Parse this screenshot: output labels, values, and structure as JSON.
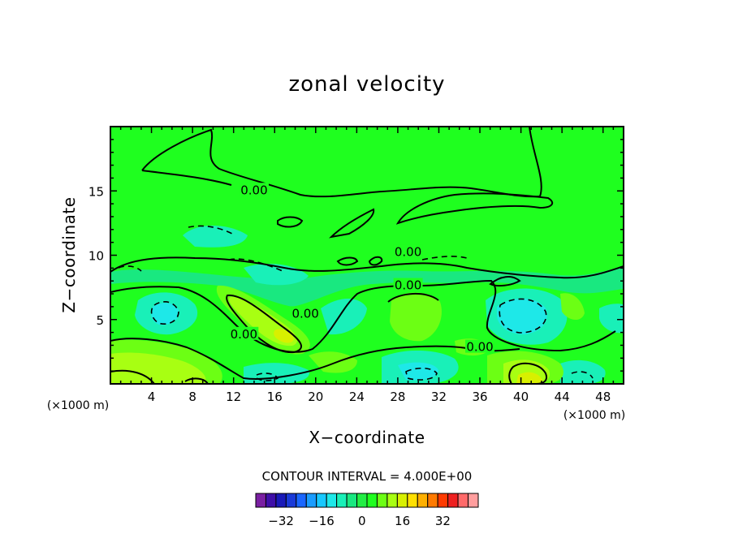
{
  "chart_data": {
    "type": "contour",
    "title": "zonal velocity",
    "xlabel": "X−coordinate",
    "ylabel": "Z−coordinate",
    "x_unit": "(×1000 m)",
    "y_unit": "(×1000 m)",
    "xlim": [
      0,
      50
    ],
    "ylim": [
      0,
      20
    ],
    "x_ticks": [
      4,
      8,
      12,
      16,
      20,
      24,
      28,
      32,
      36,
      40,
      44,
      48
    ],
    "y_ticks": [
      5,
      10,
      15
    ],
    "x_tick_labels": [
      "4",
      "8",
      "12",
      "16",
      "20",
      "24",
      "28",
      "32",
      "36",
      "40",
      "44",
      "48"
    ],
    "y_tick_labels": [
      "5",
      "10",
      "15"
    ],
    "contour_interval_text": "CONTOUR INTERVAL = 4.000E+00",
    "contour_interval": 4,
    "contour_labels": [
      {
        "text": "0.00",
        "x": 14,
        "z": 15
      },
      {
        "text": "0.00",
        "x": 29,
        "z": 10.2
      },
      {
        "text": "0.00",
        "x": 29,
        "z": 7.6
      },
      {
        "text": "0.00",
        "x": 19,
        "z": 5.4
      },
      {
        "text": "0.00",
        "x": 13,
        "z": 3.8
      },
      {
        "text": "0.00",
        "x": 36,
        "z": 2.8
      }
    ],
    "colorbar": {
      "ticks": [
        -32,
        -16,
        0,
        16,
        32
      ],
      "tick_labels": [
        "−32",
        "−16",
        "0",
        "16",
        "32"
      ],
      "levels": [
        -36,
        -32,
        -28,
        -24,
        -20,
        -16,
        -12,
        -8,
        -4,
        0,
        4,
        8,
        12,
        16,
        20,
        24,
        28,
        32,
        36
      ],
      "colors": [
        "#7a1fa2",
        "#3f0fa8",
        "#1a1ab8",
        "#1a3ad8",
        "#1a66ff",
        "#1a9cff",
        "#18c8ff",
        "#1ee8e8",
        "#19f0b8",
        "#19e880",
        "#22ee44",
        "#1fff1f",
        "#6cff14",
        "#a8ff12",
        "#d8f000",
        "#ffe000",
        "#ffb000",
        "#ff7a00",
        "#ff3a00",
        "#ee2020",
        "#ff6a6a",
        "#ff9e9e"
      ]
    }
  }
}
